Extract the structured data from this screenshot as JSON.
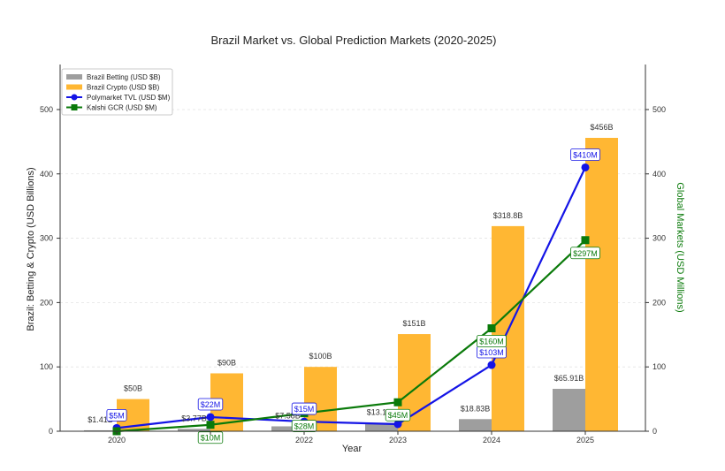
{
  "chart_data": {
    "type": "bar",
    "title": "Brazil Market vs. Global Prediction Markets (2020-2025)",
    "xlabel": "Year",
    "ylabel": "Brazil: Betting & Crypto (USD Billions)",
    "y2label": "Global Markets (USD Millions)",
    "categories": [
      "2020",
      "2021",
      "2022",
      "2023",
      "2024",
      "2025"
    ],
    "x_tick_labels": [
      "2020",
      "",
      "2022",
      "2023",
      "2024",
      "2025"
    ],
    "ylim": [
      0,
      570
    ],
    "y_ticks": [
      0,
      100,
      200,
      300,
      400,
      500
    ],
    "y2lim": [
      0,
      570
    ],
    "y2_ticks": [
      0,
      100,
      200,
      300,
      400,
      500
    ],
    "grid": "horizontal",
    "legend_position": "top-left",
    "bar_series": [
      {
        "name": "Brazil Betting (USD $B)",
        "color": "#9e9e9e",
        "values": [
          1.41,
          3.77,
          7.58,
          13.18,
          18.83,
          65.91
        ],
        "labels": [
          "$1.41B",
          "$3.77B",
          "$7.58B",
          "$13.18B",
          "$18.83B",
          "$65.91B"
        ]
      },
      {
        "name": "Brazil Crypto (USD $B)",
        "color": "#ffb733",
        "values": [
          50,
          90,
          100,
          151,
          318.8,
          456
        ],
        "labels": [
          "$50B",
          "$90B",
          "$100B",
          "$151B",
          "$318.8B",
          "$456B"
        ]
      }
    ],
    "line_series": [
      {
        "name": "Polymarket TVL (USD $M)",
        "color": "#1414e6",
        "marker": "circle",
        "axis": "right",
        "values": [
          5,
          22,
          15,
          11,
          103,
          410
        ],
        "labels": [
          "$5M",
          "$22M",
          "$15M",
          "",
          "$103M",
          "$410M"
        ]
      },
      {
        "name": "Kalshi GCR (USD $M)",
        "color": "#0a7a0a",
        "marker": "square",
        "axis": "right",
        "values": [
          0,
          10,
          28,
          45,
          160,
          297
        ],
        "labels": [
          "",
          "$10M",
          "$28M",
          "$45M",
          "$160M",
          "$297M"
        ]
      }
    ]
  }
}
